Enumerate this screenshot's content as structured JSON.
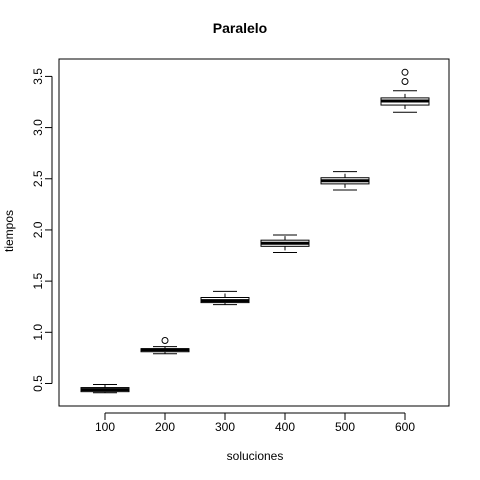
{
  "chart_data": {
    "type": "boxplot",
    "title": "Paralelo",
    "xlabel": "soluciones",
    "ylabel": "tiempos",
    "categories": [
      "100",
      "200",
      "300",
      "400",
      "500",
      "600"
    ],
    "ylim": [
      0.28,
      3.67
    ],
    "yticks": [
      0.5,
      1.0,
      1.5,
      2.0,
      2.5,
      3.0,
      3.5
    ],
    "ytick_labels": [
      "0.5",
      "1.0",
      "1.5",
      "2.0",
      "2.5",
      "3.0",
      "3.5"
    ],
    "boxes": [
      {
        "whisker_low": 0.41,
        "q1": 0.42,
        "median": 0.44,
        "q3": 0.46,
        "whisker_high": 0.49,
        "outliers": []
      },
      {
        "whisker_low": 0.79,
        "q1": 0.81,
        "median": 0.83,
        "q3": 0.84,
        "whisker_high": 0.86,
        "outliers": [
          0.92
        ]
      },
      {
        "whisker_low": 1.27,
        "q1": 1.29,
        "median": 1.31,
        "q3": 1.34,
        "whisker_high": 1.4,
        "outliers": []
      },
      {
        "whisker_low": 1.78,
        "q1": 1.84,
        "median": 1.87,
        "q3": 1.9,
        "whisker_high": 1.95,
        "outliers": []
      },
      {
        "whisker_low": 2.39,
        "q1": 2.45,
        "median": 2.48,
        "q3": 2.51,
        "whisker_high": 2.57,
        "outliers": []
      },
      {
        "whisker_low": 3.15,
        "q1": 3.22,
        "median": 3.26,
        "q3": 3.29,
        "whisker_high": 3.36,
        "outliers": [
          3.45,
          3.54
        ]
      }
    ],
    "grid": false,
    "legend": "none",
    "colors": {
      "box_fill": "#ffffff",
      "stroke": "#000000",
      "background": "#ffffff"
    }
  }
}
